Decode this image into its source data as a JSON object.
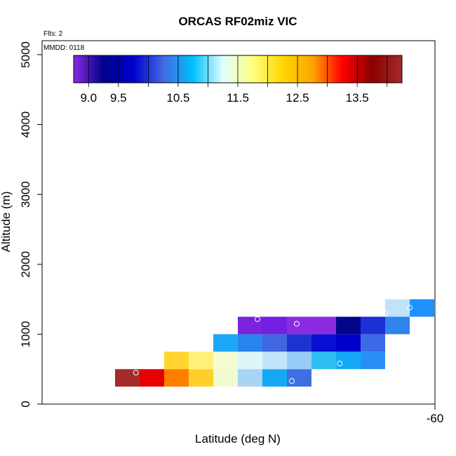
{
  "chart_data": {
    "type": "heatmap",
    "title": "ORCAS RF02miz VIC",
    "xlabel": "Latitude (deg N)",
    "ylabel": "Altitude (m)",
    "annotations": {
      "flights": "Flts: 2",
      "date": "MMDD: 0118"
    },
    "ylim": [
      0,
      5200
    ],
    "y_ticks": [
      0,
      1000,
      2000,
      3000,
      4000,
      5000
    ],
    "x_tick_labels": [
      "-60"
    ],
    "colorbar": {
      "range": [
        8.75,
        14.25
      ],
      "tick_values": [
        9.0,
        9.5,
        10.5,
        11.5,
        12.5,
        13.5
      ],
      "tick_labels": [
        "9.0",
        "9.5",
        "10.5",
        "11.5",
        "12.5",
        "13.5"
      ],
      "color_stops": [
        "#8a2be2",
        "#00008b",
        "#0000cd",
        "#4169e1",
        "#00bfff",
        "#e0ffff",
        "#ffff80",
        "#ffd700",
        "#ffa500",
        "#ff0000",
        "#8b0000",
        "#a52a2a"
      ]
    },
    "cells": [
      {
        "col": 0,
        "alt": 250,
        "color": "#a52a2a"
      },
      {
        "col": 1,
        "alt": 250,
        "color": "#e60000"
      },
      {
        "col": 2,
        "alt": 250,
        "color": "#ff7f00"
      },
      {
        "col": 3,
        "alt": 250,
        "color": "#ffd02b"
      },
      {
        "col": 4,
        "alt": 250,
        "color": "#f2fad2"
      },
      {
        "col": 5,
        "alt": 250,
        "color": "#a9d4f5"
      },
      {
        "col": 6,
        "alt": 250,
        "color": "#14a8f5"
      },
      {
        "col": 7,
        "alt": 250,
        "color": "#3d6fe0"
      },
      {
        "col": 2,
        "alt": 500,
        "color": "#ffd52e"
      },
      {
        "col": 3,
        "alt": 500,
        "color": "#fff07a"
      },
      {
        "col": 4,
        "alt": 500,
        "color": "#f5fcd2"
      },
      {
        "col": 5,
        "alt": 500,
        "color": "#ddf6f6"
      },
      {
        "col": 6,
        "alt": 500,
        "color": "#c3e4fb"
      },
      {
        "col": 7,
        "alt": 500,
        "color": "#97cdf7"
      },
      {
        "col": 8,
        "alt": 500,
        "color": "#2dbef3"
      },
      {
        "col": 9,
        "alt": 500,
        "color": "#15a8f7"
      },
      {
        "col": 10,
        "alt": 500,
        "color": "#288ff5"
      },
      {
        "col": 4,
        "alt": 750,
        "color": "#1ea6f6"
      },
      {
        "col": 5,
        "alt": 750,
        "color": "#2a84ef"
      },
      {
        "col": 6,
        "alt": 750,
        "color": "#4066e0"
      },
      {
        "col": 7,
        "alt": 750,
        "color": "#1e32d2"
      },
      {
        "col": 8,
        "alt": 750,
        "color": "#0810d2"
      },
      {
        "col": 9,
        "alt": 750,
        "color": "#0000cc"
      },
      {
        "col": 10,
        "alt": 750,
        "color": "#3a6ae6"
      },
      {
        "col": 5,
        "alt": 1000,
        "color": "#7a22dc"
      },
      {
        "col": 6,
        "alt": 1000,
        "color": "#7020de"
      },
      {
        "col": 7,
        "alt": 1000,
        "color": "#8a2be2"
      },
      {
        "col": 8,
        "alt": 1000,
        "color": "#8a2be2"
      },
      {
        "col": 9,
        "alt": 1000,
        "color": "#05058a"
      },
      {
        "col": 10,
        "alt": 1000,
        "color": "#1e2fd6"
      },
      {
        "col": 11,
        "alt": 1000,
        "color": "#2f84f0"
      },
      {
        "col": 11,
        "alt": 1250,
        "color": "#bfe3fa"
      },
      {
        "col": 12,
        "alt": 1250,
        "color": "#1e90ff"
      }
    ],
    "flight_markers": [
      {
        "col": 0.35,
        "alt": 450
      },
      {
        "col": 5.3,
        "alt": 1215
      },
      {
        "col": 6.7,
        "alt": 330
      },
      {
        "col": 6.9,
        "alt": 1150
      },
      {
        "col": 8.65,
        "alt": 580
      },
      {
        "col": 10.5,
        "alt": 1295
      },
      {
        "col": 11.5,
        "alt": 1380
      }
    ]
  }
}
